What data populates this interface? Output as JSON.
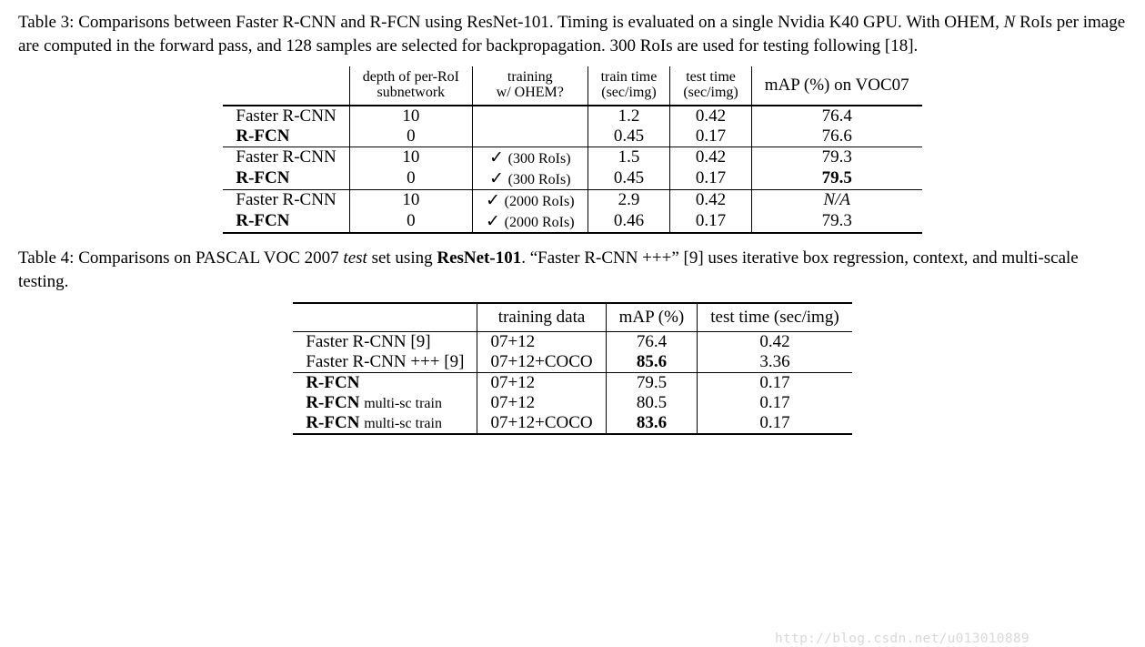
{
  "table3": {
    "caption_html": "Table 3: Comparisons between Faster R-CNN and R-FCN using ResNet-101. Timing is evaluated on a single Nvidia K40 GPU. With OHEM, <span class='ital'>N</span> RoIs per image are computed in the forward pass, and 128 samples are selected for backpropagation. 300 RoIs are used for testing following [18].",
    "headers": {
      "c0": "",
      "c1a": "depth of per-RoI",
      "c1b": "subnetwork",
      "c2a": "training",
      "c2b": "w/ OHEM?",
      "c3a": "train time",
      "c3b": "(sec/img)",
      "c4a": "test time",
      "c4b": "(sec/img)",
      "c5": "mAP (%) on VOC07"
    },
    "groups": [
      [
        {
          "method": "Faster R-CNN",
          "method_bold": false,
          "depth": "10",
          "ohem": "",
          "train": "1.2",
          "test": "0.42",
          "map": "76.4",
          "map_bold": false,
          "map_ital": false
        },
        {
          "method": "R-FCN",
          "method_bold": true,
          "depth": "0",
          "ohem": "",
          "train": "0.45",
          "test": "0.17",
          "map": "76.6",
          "map_bold": false,
          "map_ital": false
        }
      ],
      [
        {
          "method": "Faster R-CNN",
          "method_bold": false,
          "depth": "10",
          "ohem": "✓ (300 RoIs)",
          "train": "1.5",
          "test": "0.42",
          "map": "79.3",
          "map_bold": false,
          "map_ital": false
        },
        {
          "method": "R-FCN",
          "method_bold": true,
          "depth": "0",
          "ohem": "✓ (300 RoIs)",
          "train": "0.45",
          "test": "0.17",
          "map": "79.5",
          "map_bold": true,
          "map_ital": false
        }
      ],
      [
        {
          "method": "Faster R-CNN",
          "method_bold": false,
          "depth": "10",
          "ohem": "✓ (2000 RoIs)",
          "train": "2.9",
          "test": "0.42",
          "map": "N/A",
          "map_bold": false,
          "map_ital": true
        },
        {
          "method": "R-FCN",
          "method_bold": true,
          "depth": "0",
          "ohem": "✓ (2000 RoIs)",
          "train": "0.46",
          "test": "0.17",
          "map": "79.3",
          "map_bold": false,
          "map_ital": false
        }
      ]
    ]
  },
  "table4": {
    "caption_html": "Table 4: Comparisons on PASCAL VOC 2007 <span class='ital'>test</span> set using <span class='bold'>ResNet-101</span>. “Faster R-CNN +++” [9] uses iterative box regression, context, and multi-scale testing.",
    "headers": {
      "c0": "",
      "c1": "training data",
      "c2": "mAP (%)",
      "c3": "test time (sec/img)"
    },
    "groups": [
      [
        {
          "method_html": "Faster R-CNN [9]",
          "train": "07+12",
          "map": "76.4",
          "map_bold": false,
          "tt": "0.42"
        },
        {
          "method_html": "Faster R-CNN +++ [9]",
          "train": "07+12+COCO",
          "map": "85.6",
          "map_bold": true,
          "tt": "3.36"
        }
      ],
      [
        {
          "method_html": "<span class='bold'>R-FCN</span>",
          "train": "07+12",
          "map": "79.5",
          "map_bold": false,
          "tt": "0.17"
        },
        {
          "method_html": "<span class='bold'>R-FCN</span> <span class='small'>multi-sc train</span>",
          "train": "07+12",
          "map": "80.5",
          "map_bold": false,
          "tt": "0.17"
        },
        {
          "method_html": "<span class='bold'>R-FCN</span> <span class='small'>multi-sc train</span>",
          "train": "07+12+COCO",
          "map": "83.6",
          "map_bold": true,
          "tt": "0.17"
        }
      ]
    ]
  },
  "watermark": "http://blog.csdn.net/u013010889"
}
